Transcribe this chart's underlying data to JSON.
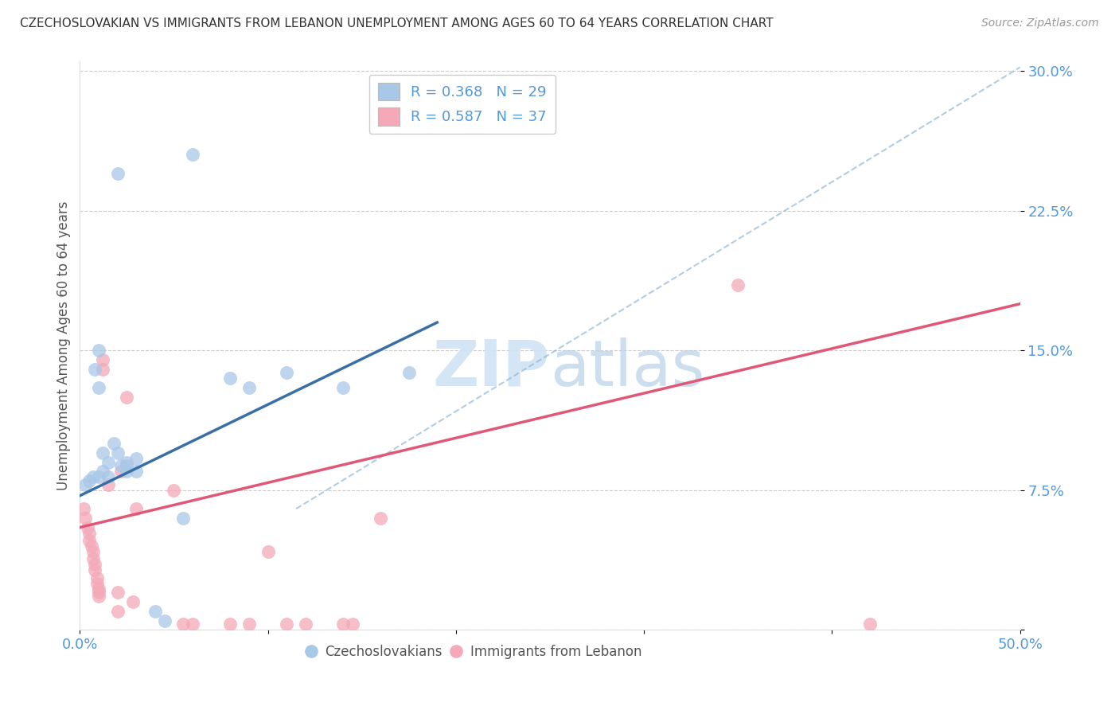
{
  "title": "CZECHOSLOVAKIAN VS IMMIGRANTS FROM LEBANON UNEMPLOYMENT AMONG AGES 60 TO 64 YEARS CORRELATION CHART",
  "source": "Source: ZipAtlas.com",
  "ylabel": "Unemployment Among Ages 60 to 64 years",
  "xlim": [
    0.0,
    0.5
  ],
  "ylim": [
    0.0,
    0.305
  ],
  "blue_R": 0.368,
  "blue_N": 29,
  "pink_R": 0.587,
  "pink_N": 37,
  "blue_color": "#a8c8e8",
  "pink_color": "#f4a8b8",
  "blue_line_color": "#3a6fa5",
  "pink_line_color": "#e05878",
  "dashed_color": "#90b8d8",
  "blue_scatter": [
    [
      0.003,
      0.078
    ],
    [
      0.005,
      0.08
    ],
    [
      0.007,
      0.082
    ],
    [
      0.008,
      0.14
    ],
    [
      0.01,
      0.13
    ],
    [
      0.01,
      0.15
    ],
    [
      0.01,
      0.082
    ],
    [
      0.012,
      0.095
    ],
    [
      0.012,
      0.085
    ],
    [
      0.015,
      0.09
    ],
    [
      0.015,
      0.082
    ],
    [
      0.018,
      0.1
    ],
    [
      0.02,
      0.095
    ],
    [
      0.02,
      0.245
    ],
    [
      0.022,
      0.088
    ],
    [
      0.025,
      0.09
    ],
    [
      0.025,
      0.088
    ],
    [
      0.025,
      0.085
    ],
    [
      0.03,
      0.092
    ],
    [
      0.03,
      0.085
    ],
    [
      0.04,
      0.01
    ],
    [
      0.045,
      0.005
    ],
    [
      0.055,
      0.06
    ],
    [
      0.06,
      0.255
    ],
    [
      0.08,
      0.135
    ],
    [
      0.09,
      0.13
    ],
    [
      0.11,
      0.138
    ],
    [
      0.14,
      0.13
    ],
    [
      0.175,
      0.138
    ]
  ],
  "pink_scatter": [
    [
      0.002,
      0.065
    ],
    [
      0.003,
      0.06
    ],
    [
      0.004,
      0.055
    ],
    [
      0.005,
      0.052
    ],
    [
      0.005,
      0.048
    ],
    [
      0.006,
      0.045
    ],
    [
      0.007,
      0.042
    ],
    [
      0.007,
      0.038
    ],
    [
      0.008,
      0.035
    ],
    [
      0.008,
      0.032
    ],
    [
      0.009,
      0.028
    ],
    [
      0.009,
      0.025
    ],
    [
      0.01,
      0.022
    ],
    [
      0.01,
      0.02
    ],
    [
      0.01,
      0.018
    ],
    [
      0.012,
      0.145
    ],
    [
      0.012,
      0.14
    ],
    [
      0.015,
      0.078
    ],
    [
      0.02,
      0.01
    ],
    [
      0.02,
      0.02
    ],
    [
      0.022,
      0.085
    ],
    [
      0.025,
      0.125
    ],
    [
      0.028,
      0.015
    ],
    [
      0.03,
      0.065
    ],
    [
      0.05,
      0.075
    ],
    [
      0.055,
      0.003
    ],
    [
      0.06,
      0.003
    ],
    [
      0.08,
      0.003
    ],
    [
      0.09,
      0.003
    ],
    [
      0.1,
      0.042
    ],
    [
      0.11,
      0.003
    ],
    [
      0.12,
      0.003
    ],
    [
      0.14,
      0.003
    ],
    [
      0.145,
      0.003
    ],
    [
      0.16,
      0.06
    ],
    [
      0.35,
      0.185
    ],
    [
      0.42,
      0.003
    ]
  ],
  "blue_line_x": [
    0.0,
    0.19
  ],
  "blue_line_y": [
    0.072,
    0.165
  ],
  "pink_line_x": [
    0.0,
    0.5
  ],
  "pink_line_y": [
    0.055,
    0.175
  ],
  "dashed_line_x": [
    0.115,
    0.5
  ],
  "dashed_line_y": [
    0.065,
    0.302
  ],
  "watermark_zip": "ZIP",
  "watermark_atlas": "atlas",
  "background_color": "#ffffff",
  "grid_color": "#cccccc",
  "tick_color": "#5599dd",
  "label_color": "#555555"
}
